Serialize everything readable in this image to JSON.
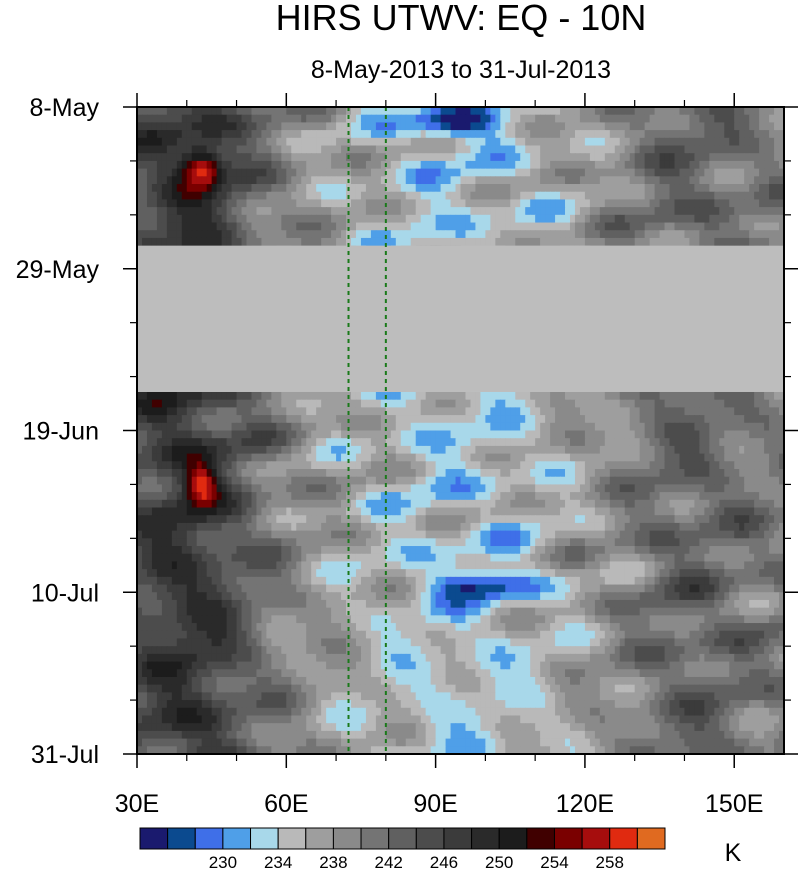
{
  "chart_data": {
    "type": "heatmap",
    "title": "HIRS UTWV: EQ - 10N",
    "subtitle": "8-May-2013 to 31-Jul-2013",
    "x_ticks": [
      "30E",
      "60E",
      "90E",
      "120E",
      "150E"
    ],
    "x_tick_values": [
      30,
      60,
      90,
      120,
      150
    ],
    "xlim": [
      30,
      160
    ],
    "y_ticks": [
      "8-May",
      "29-May",
      "19-Jun",
      "10-Jul",
      "31-Jul"
    ],
    "y_tick_values": [
      "2013-05-08",
      "2013-05-29",
      "2013-06-19",
      "2013-07-10",
      "2013-07-31"
    ],
    "ylim": [
      "2013-05-08",
      "2013-07-31"
    ],
    "y_reversed": true,
    "missing_data_band": [
      "2013-05-26",
      "2013-06-14"
    ],
    "reference_lines_lon": [
      72.5,
      80
    ],
    "colorbar": {
      "unit": "K",
      "levels": [
        226,
        228,
        230,
        232,
        234,
        236,
        238,
        240,
        242,
        244,
        246,
        248,
        250,
        252,
        254,
        256,
        258,
        260
      ],
      "tick_labels": [
        "230",
        "234",
        "238",
        "242",
        "246",
        "250",
        "254",
        "258"
      ],
      "tick_values": [
        230,
        234,
        238,
        242,
        246,
        250,
        254,
        258
      ],
      "colors": [
        "#1a1a6e",
        "#0b4a8f",
        "#3f6fe8",
        "#4f9fe8",
        "#a8d8ea",
        "#b9b9b9",
        "#9e9e9e",
        "#8a8a8a",
        "#747474",
        "#606060",
        "#4c4c4c",
        "#3b3b3b",
        "#2a2a2a",
        "#1c1c1c",
        "#400000",
        "#7a0000",
        "#a60d0d",
        "#e02a10",
        "#e06a20"
      ]
    },
    "missing_color": "#bdbdbd"
  }
}
